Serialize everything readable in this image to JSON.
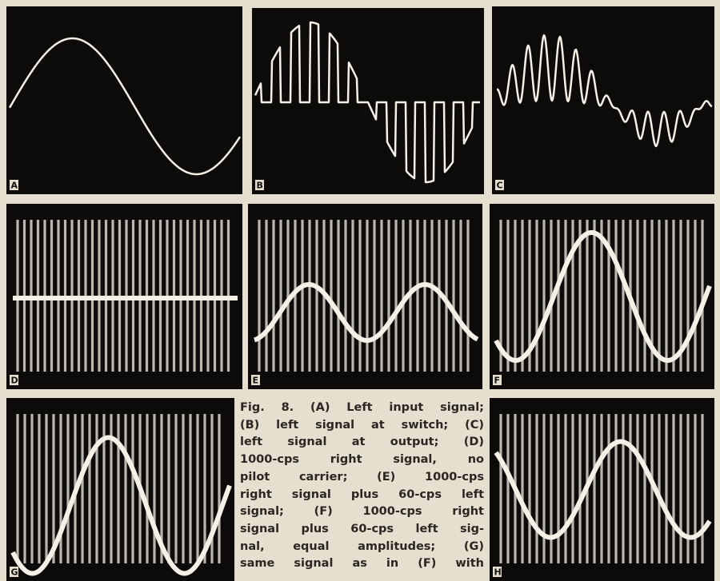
{
  "panels": [
    {
      "label": "A"
    },
    {
      "label": "B"
    },
    {
      "label": "C"
    },
    {
      "label": "D"
    },
    {
      "label": "E"
    },
    {
      "label": "F"
    },
    {
      "label": "G"
    },
    {
      "label": "H"
    }
  ],
  "caption": {
    "lines": [
      "Fig. 8. (A) Left input signal;",
      "(B) left signal at switch; (C)",
      "left signal at output; (D)",
      "1000-cps right signal, no",
      "pilot carrier; (E) 1000-cps",
      "right signal plus 60-cps left",
      "signal; (F) 1000-cps right",
      "signal plus 60-cps left sig-",
      "nal, equal amplitudes; (G)",
      "same signal as in (F) with"
    ]
  }
}
